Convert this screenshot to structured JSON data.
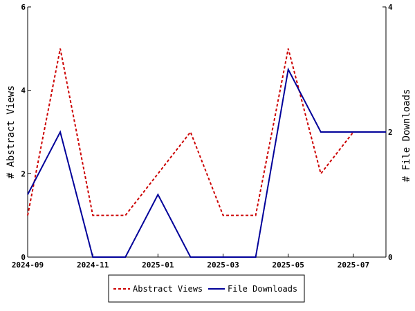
{
  "chart_data": {
    "type": "line",
    "x": [
      "2024-09",
      "2024-10",
      "2024-11",
      "2024-12",
      "2025-01",
      "2025-02",
      "2025-03",
      "2025-04",
      "2025-05",
      "2025-06",
      "2025-07",
      "2025-08"
    ],
    "x_tick_labels": [
      "2024-09",
      "2024-11",
      "2025-01",
      "2025-03",
      "2025-05",
      "2025-07"
    ],
    "xlim": [
      "2024-09",
      "2025-08"
    ],
    "ylabel_left": "# Abstract Views",
    "ylabel_right": "# File Downloads",
    "ylim_left": [
      0,
      6
    ],
    "ylim_right": [
      0,
      4
    ],
    "yticks_left": [
      "0",
      "2",
      "4",
      "6"
    ],
    "yticks_right": [
      "0",
      "2",
      "4"
    ],
    "grid": false,
    "legend_position": "bottom",
    "series": [
      {
        "name": "Abstract Views",
        "axis": "left",
        "color": "#cc0000",
        "dash": "dashed",
        "values": [
          1,
          5,
          1,
          1,
          2,
          3,
          1,
          1,
          5,
          2,
          3,
          null
        ]
      },
      {
        "name": "File Downloads",
        "axis": "right",
        "color": "#000099",
        "dash": "solid",
        "values": [
          1,
          2,
          0,
          0,
          1,
          0,
          0,
          0,
          3,
          2,
          2,
          2
        ]
      }
    ]
  }
}
